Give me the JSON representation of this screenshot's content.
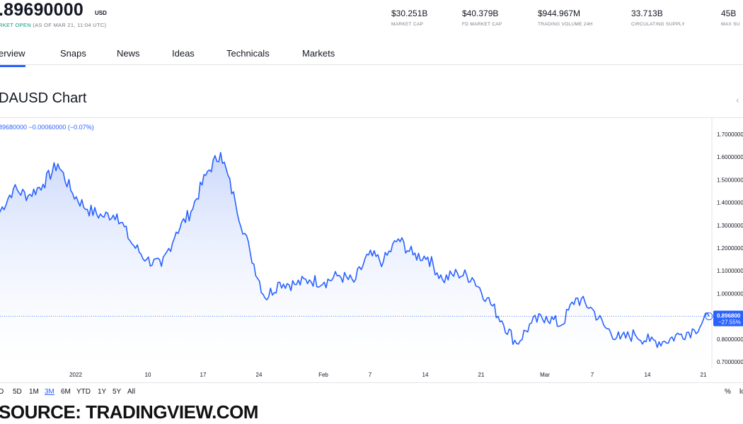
{
  "header": {
    "price": ".89690000",
    "currency": "USD",
    "status_open": "RKET OPEN",
    "status_asof": "(AS OF MAR 21, 11:04 UTC)",
    "stats": [
      {
        "value": "$30.251B",
        "label": "MARKET CAP"
      },
      {
        "value": "$40.379B",
        "label": "FD MARKET CAP"
      },
      {
        "value": "$944.967M",
        "label": "TRADING VOLUME 24H"
      },
      {
        "value": "33.713B",
        "label": "CIRCULATING SUPPLY"
      },
      {
        "value": "45B",
        "label": "MAX SU"
      }
    ]
  },
  "tabs": [
    "erview",
    "Snaps",
    "News",
    "Ideas",
    "Technicals",
    "Markets"
  ],
  "chart_title": "DAUSD Chart",
  "legend": "89680000  −0.00060000 (−0.07%)",
  "ranges": [
    "D",
    "5D",
    "1M",
    "3M",
    "6M",
    "YTD",
    "1Y",
    "5Y",
    "All"
  ],
  "active_range": "3M",
  "pct_label": "%",
  "log_label": "lo",
  "source": "SOURCE: TRADINGVIEW.COM",
  "icons": {
    "collapse": "chevron-left-icon"
  },
  "colors": {
    "line": "#2962ff",
    "fill_top": "#c5d4fb",
    "fill_bottom": "#ffffff",
    "price_tag": "#2962ff",
    "open_status": "#089981"
  },
  "chart_data": {
    "type": "area",
    "title": "DAUSD Chart",
    "xlabel": "",
    "ylabel": "",
    "ylim": [
      0.66,
      1.72
    ],
    "x_ticks": [
      "2022",
      "10",
      "17",
      "24",
      "Feb",
      "7",
      "14",
      "21",
      "Mar",
      "7",
      "14",
      "21"
    ],
    "y_ticks": [
      "1.7000000",
      "1.6000000",
      "1.5000000",
      "1.4000000",
      "1.3000000",
      "1.2000000",
      "1.1000000",
      "1.0000000",
      "0.8000000",
      "0.7000000"
    ],
    "last_value_label": "0.896800",
    "last_change_label": "−27.55%",
    "x": [
      "Dec 21",
      "Dec 23",
      "Dec 25",
      "Dec 27",
      "Dec 29",
      "Dec 31",
      "Jan 2",
      "Jan 4",
      "Jan 6",
      "Jan 8",
      "Jan 10",
      "Jan 12",
      "Jan 14",
      "Jan 16",
      "Jan 17",
      "Jan 18",
      "Jan 19",
      "Jan 20",
      "Jan 22",
      "Jan 24",
      "Jan 26",
      "Jan 28",
      "Jan 30",
      "Feb 1",
      "Feb 3",
      "Feb 5",
      "Feb 7",
      "Feb 9",
      "Feb 10",
      "Feb 12",
      "Feb 14",
      "Feb 16",
      "Feb 18",
      "Feb 20",
      "Feb 22",
      "Feb 24",
      "Feb 26",
      "Feb 28",
      "Mar 2",
      "Mar 4",
      "Mar 6",
      "Mar 8",
      "Mar 10",
      "Mar 12",
      "Mar 14",
      "Mar 16",
      "Mar 18",
      "Mar 20",
      "Mar 21"
    ],
    "values": [
      1.35,
      1.46,
      1.43,
      1.48,
      1.57,
      1.44,
      1.37,
      1.34,
      1.35,
      1.22,
      1.15,
      1.12,
      1.27,
      1.36,
      1.52,
      1.62,
      1.4,
      1.18,
      0.98,
      1.05,
      1.04,
      1.06,
      1.05,
      1.08,
      1.05,
      1.17,
      1.14,
      1.24,
      1.17,
      1.16,
      1.06,
      1.09,
      1.07,
      0.98,
      0.88,
      0.78,
      0.87,
      0.9,
      0.86,
      0.98,
      0.94,
      0.85,
      0.8,
      0.82,
      0.79,
      0.79,
      0.82,
      0.84,
      0.9
    ]
  }
}
